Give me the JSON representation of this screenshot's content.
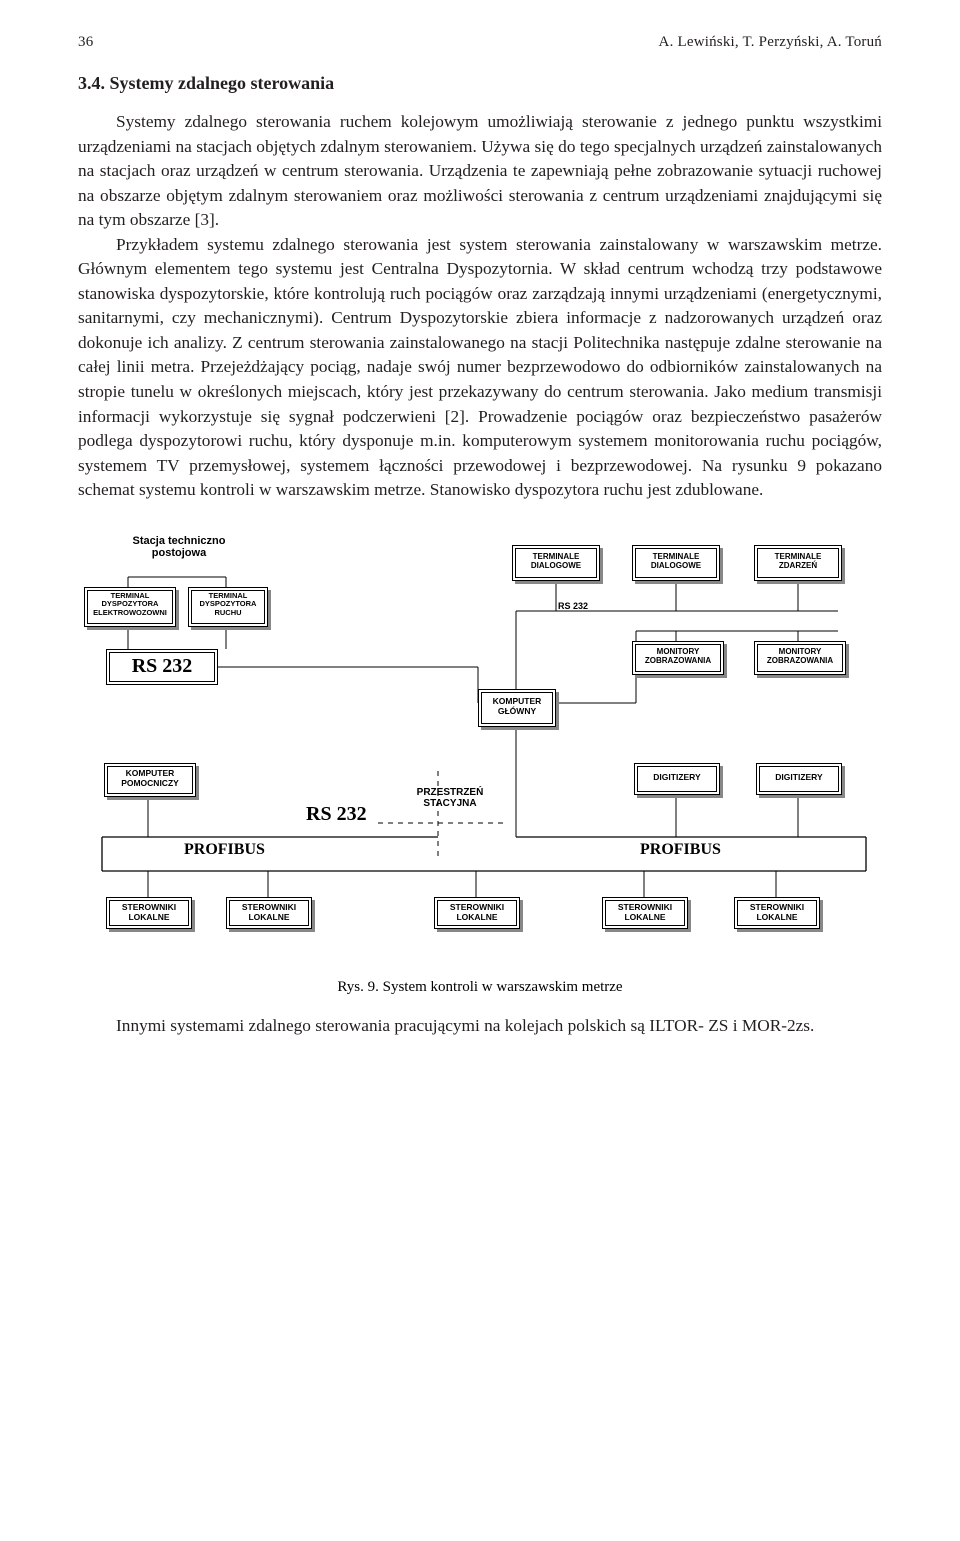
{
  "page_number": "36",
  "running_author": "A. Lewiński, T. Perzyński, A. Toruń",
  "section_number": "3.4.",
  "section_title": "Systemy zdalnego sterowania",
  "para1": "Systemy zdalnego sterowania ruchem kolejowym umożliwiają sterowanie z jednego punktu wszystkimi urządzeniami na stacjach objętych zdalnym sterowaniem. Używa się do tego specjalnych urządzeń zainstalowanych na stacjach oraz urządzeń w centrum sterowania. Urządzenia te zapewniają pełne zobrazowanie sytuacji ruchowej na obszarze objętym zdalnym sterowaniem oraz możliwości sterowania z centrum urządzeniami znajdującymi się na tym obszarze [3].",
  "para2": "Przykładem systemu zdalnego sterowania jest system sterowania zainstalowany w war­szawskim metrze. Głównym elementem tego systemu jest Centralna Dyspozytornia. W skład centrum wchodzą trzy podstawowe stanowiska dyspozytorskie, które kontrolują ruch pociągów oraz zarządzają innymi urządzeniami (energetycznymi, sanitarnymi, czy mechanicznymi). Centrum Dyspozytorskie zbiera informacje z nadzorowanych urzą­dzeń oraz dokonuje ich analizy. Z centrum sterowania zainstalowanego na stacji Poli­technika następuje zdalne sterowanie na całej linii metra. Przejeżdżający pociąg, nadaje swój numer bezprzewodowo do odbiorników zainstalowanych na stropie tunelu w okre­ślonych miejscach, który jest przekazywany do centrum sterowania. Jako medium transmisji informacji wykorzystuje się sygnał podczerwieni [2]. Prowadzenie pociągów oraz bez­pieczeństwo pasażerów podlega dyspozytorowi ruchu, który dysponuje m.in. kompute­rowym systemem monitorowania ruchu pociągów, systemem TV przemysłowej, systemem łączności przewodowej i bezprzewodowej. Na rysunku 9 pokazano schemat systemu kontroli w warszawskim metrze. Stanowisko dyspozytora ruchu jest zdublowane.",
  "fig_caption": "Rys. 9. System kontroli w warszawskim metrze",
  "closing": "Innymi systemami zdalnego sterowania pracującymi na kolejach polskich są ILTOR- ZS i MOR-2zs.",
  "diagram": {
    "labels": {
      "stacja": "Stacja techniczno\npostojowa",
      "term_elektro": "TERMINAL\nDYSPOZYTORA\nELEKTROWOZOWNI",
      "term_ruchu": "TERMINAL\nDYSPOZYTORA\nRUCHU",
      "rs232_big": "RS 232",
      "rs232_big2": "RS 232",
      "rs232_small": "RS 232",
      "term_dialog": "TERMINALE\nDIALOGOWE",
      "term_zdarz": "TERMINALE\nZDARZEŃ",
      "mon_zobr": "MONITORY\nZOBRAZOWANIA",
      "komp_glowny": "KOMPUTER\nGŁÓWNY",
      "komp_pomoc": "KOMPUTER\nPOMOCNICZY",
      "profibus": "PROFIBUS",
      "przestrzen": "PRZESTRZEŃ\nSTACYJNA",
      "digitizery": "DIGITIZERY",
      "ster_lokalne": "STEROWNIKI\nLOKALNE"
    },
    "style": {
      "box_border": "#000000",
      "shadow": "#888888",
      "line": "#000000",
      "dash": "4 4"
    }
  }
}
